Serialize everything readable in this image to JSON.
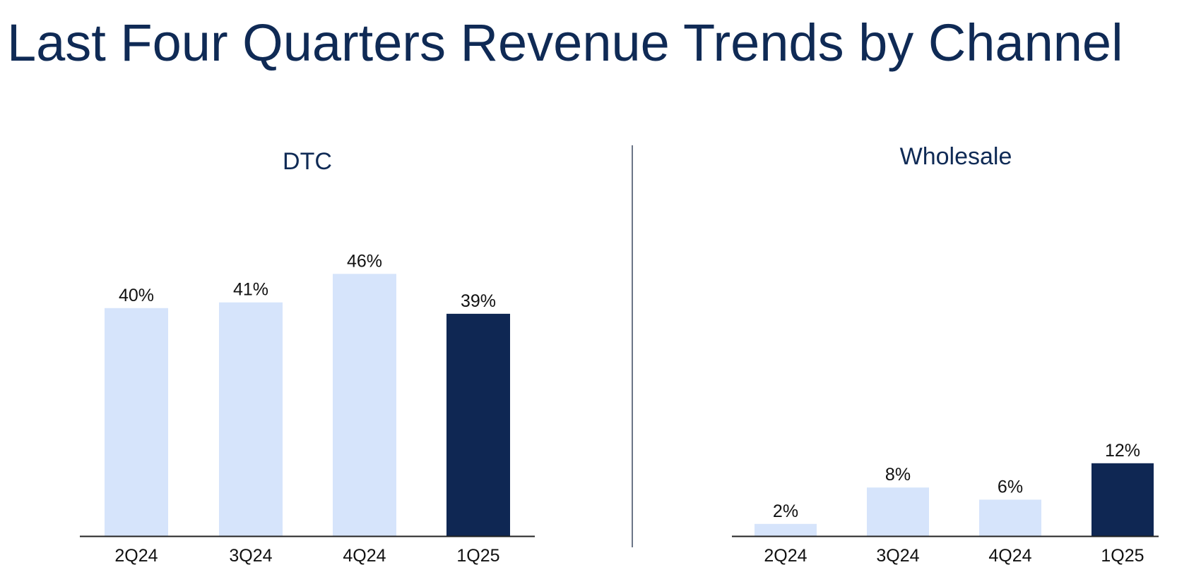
{
  "title": "Last Four Quarters Revenue Trends by Channel",
  "colors": {
    "title": "#0f2a55",
    "bar_prior": "#d6e4fb",
    "bar_current": "#0f2753",
    "text": "#111111",
    "axis": "#222222"
  },
  "chart_data": [
    {
      "type": "bar",
      "title": "DTC",
      "categories": [
        "2Q24",
        "3Q24",
        "4Q24",
        "1Q25"
      ],
      "values": [
        40,
        41,
        46,
        39
      ],
      "value_labels": [
        "40%",
        "41%",
        "46%",
        "39%"
      ],
      "highlight_index": 3,
      "xlabel": "",
      "ylabel": "",
      "unit": "%",
      "grid": false
    },
    {
      "type": "bar",
      "title": "Wholesale",
      "categories": [
        "2Q24",
        "3Q24",
        "4Q24",
        "1Q25"
      ],
      "values": [
        2,
        8,
        6,
        12
      ],
      "value_labels": [
        "2%",
        "8%",
        "6%",
        "12%"
      ],
      "highlight_index": 3,
      "xlabel": "",
      "ylabel": "",
      "unit": "%",
      "grid": false
    }
  ]
}
